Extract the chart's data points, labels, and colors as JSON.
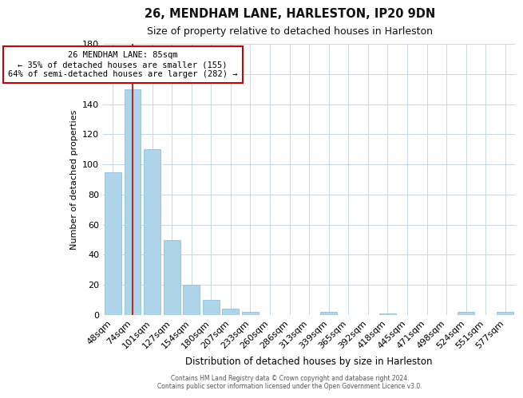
{
  "title": "26, MENDHAM LANE, HARLESTON, IP20 9DN",
  "subtitle": "Size of property relative to detached houses in Harleston",
  "xlabel": "Distribution of detached houses by size in Harleston",
  "ylabel": "Number of detached properties",
  "bar_labels": [
    "48sqm",
    "74sqm",
    "101sqm",
    "127sqm",
    "154sqm",
    "180sqm",
    "207sqm",
    "233sqm",
    "260sqm",
    "286sqm",
    "313sqm",
    "339sqm",
    "365sqm",
    "392sqm",
    "418sqm",
    "445sqm",
    "471sqm",
    "498sqm",
    "524sqm",
    "551sqm",
    "577sqm"
  ],
  "bar_values": [
    95,
    150,
    110,
    50,
    20,
    10,
    4,
    2,
    0,
    0,
    0,
    2,
    0,
    0,
    1,
    0,
    0,
    0,
    2,
    0,
    2
  ],
  "bar_color": "#aed4ea",
  "highlight_bar_index": 1,
  "highlight_color": "#cc0000",
  "annotation_title": "26 MENDHAM LANE: 85sqm",
  "annotation_line1": "← 35% of detached houses are smaller (155)",
  "annotation_line2": "64% of semi-detached houses are larger (282) →",
  "ylim": [
    0,
    180
  ],
  "yticks": [
    0,
    20,
    40,
    60,
    80,
    100,
    120,
    140,
    160,
    180
  ],
  "footer1": "Contains HM Land Registry data © Crown copyright and database right 2024.",
  "footer2": "Contains public sector information licensed under the Open Government Licence v3.0.",
  "bg_color": "#ffffff",
  "grid_color": "#c8d8e8"
}
